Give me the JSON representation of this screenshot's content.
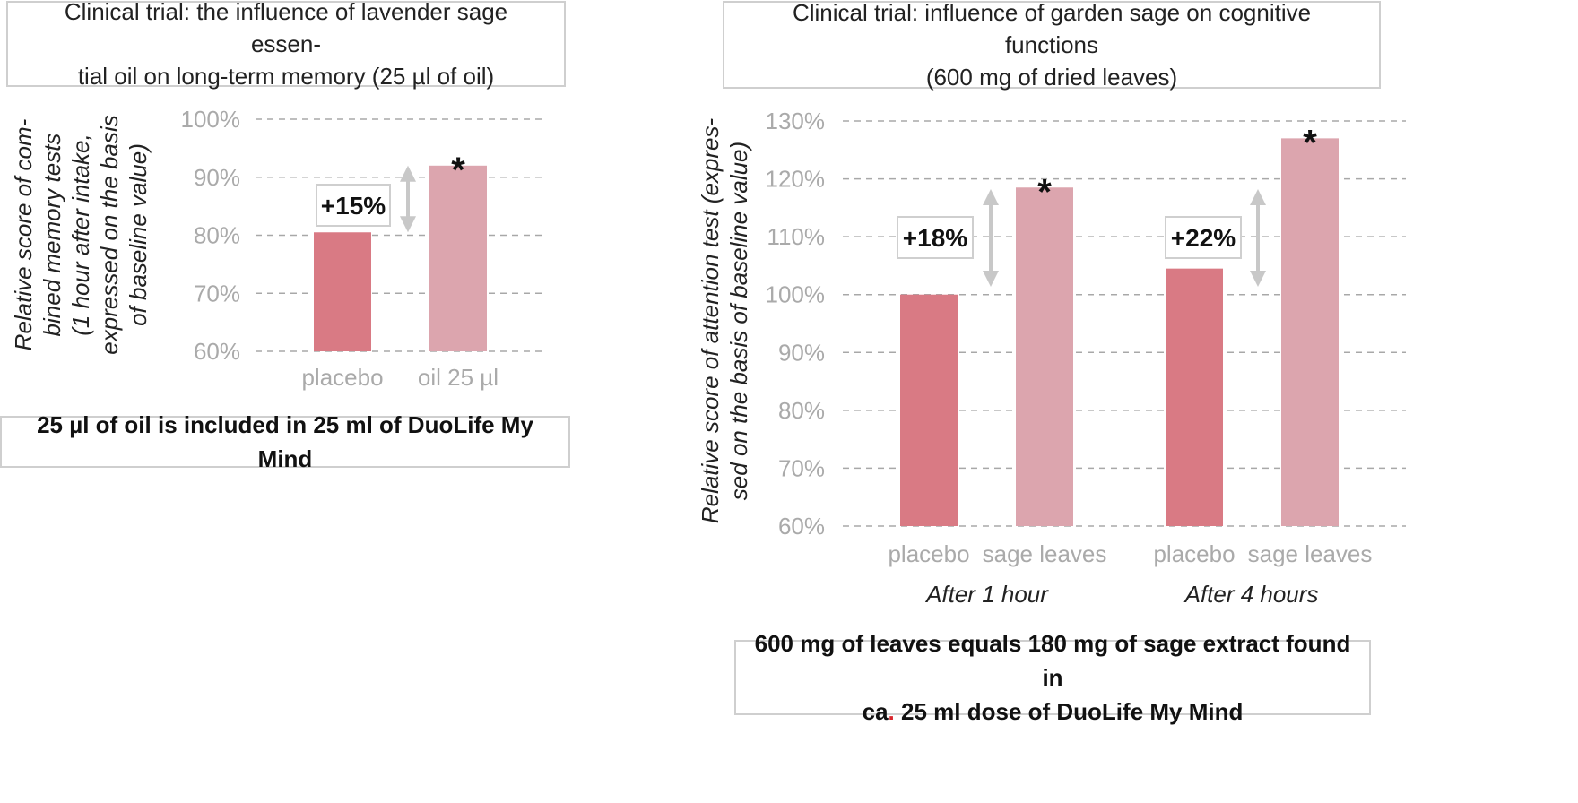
{
  "chart_data": [
    {
      "type": "bar",
      "title": "Clinical trial: the influence of lavender sage essential oil on long-term memory (25 µl of oil)",
      "title_lines": [
        "Clinical trial: the influence of lavender sage essen-",
        "tial oil on long-term memory (25 µl of oil)"
      ],
      "ylabel_lines": [
        "Relative score of com-",
        "bined memory tests",
        "(1 hour after intake,",
        "expressed on the basis",
        "of baseline value)"
      ],
      "yticks": [
        "60%",
        "70%",
        "80%",
        "90%",
        "100%"
      ],
      "ylim": [
        60,
        100
      ],
      "grid": true,
      "categories": [
        "placebo",
        "oil 25 µl"
      ],
      "values": [
        80.5,
        92
      ],
      "colors": [
        "#d97a84",
        "#dca5ae"
      ],
      "increase_label": "+15%",
      "significance_mark": "*",
      "note": "25 µl of oil is included in 25 ml of DuoLife My Mind"
    },
    {
      "type": "bar",
      "title": "Clinical trial: influence of garden sage on cognitive functions (600 mg of dried leaves)",
      "title_lines": [
        "Clinical trial: influence of garden sage on cognitive functions",
        "(600 mg of dried leaves)"
      ],
      "ylabel_lines": [
        "Relative score of attention test (expres-",
        "sed on the basis of baseline value)"
      ],
      "yticks": [
        "60%",
        "70%",
        "80%",
        "90%",
        "100%",
        "110%",
        "120%",
        "130%"
      ],
      "ylim": [
        60,
        130
      ],
      "grid": true,
      "groups": [
        {
          "label": "After 1 hour",
          "categories": [
            "placebo",
            "sage leaves"
          ],
          "values": [
            100,
            118.5
          ],
          "increase_label": "+18%",
          "significance_mark": "*"
        },
        {
          "label": "After 4 hours",
          "categories": [
            "placebo",
            "sage leaves"
          ],
          "values": [
            104.5,
            127
          ],
          "increase_label": "+22%",
          "significance_mark": "*"
        }
      ],
      "colors": [
        "#d97a84",
        "#dca5ae"
      ],
      "note_line1": "600 mg of leaves equals 180 mg of sage extract found in",
      "note_line2_pre": "ca",
      "note_line2_dot": ".",
      "note_line2_post": " 25 ml dose of DuoLife My Mind",
      "dot_color": "#d9262c"
    }
  ]
}
